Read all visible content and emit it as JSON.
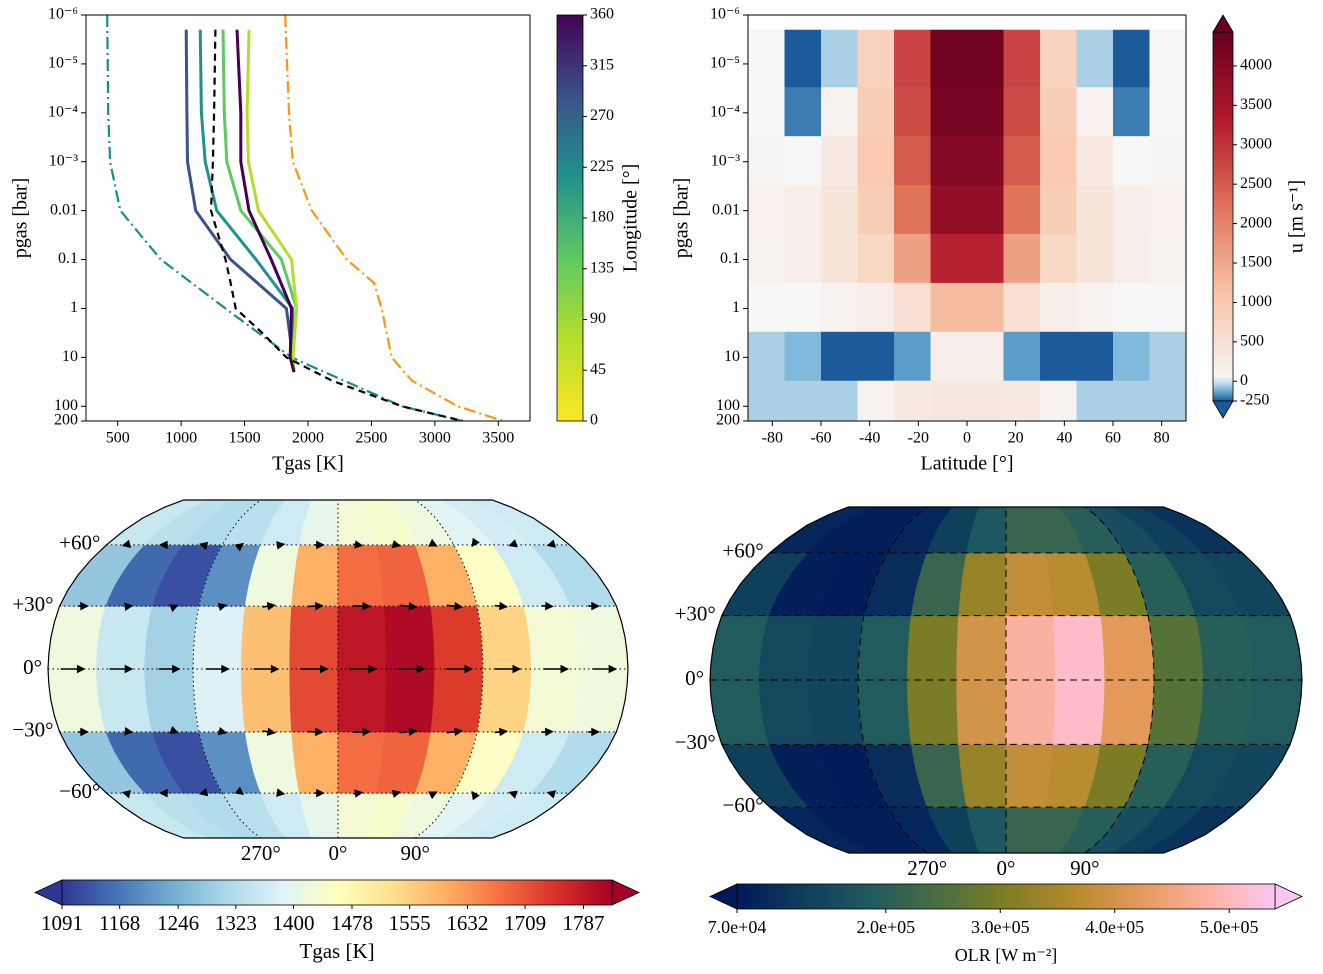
{
  "chart_data": [
    {
      "type": "line",
      "xlabel": "Tgas [K]",
      "ylabel": "pgas [bar]",
      "xlim": [
        250,
        3750
      ],
      "xticks": [
        500,
        1000,
        1500,
        2000,
        2500,
        3000,
        3500
      ],
      "ylim": [
        1e-06,
        200
      ],
      "ylog": true,
      "yinverted": true,
      "yticks": [
        {
          "value": 1e-06,
          "label": "10⁻⁶"
        },
        {
          "value": 1e-05,
          "label": "10⁻⁵"
        },
        {
          "value": 0.0001,
          "label": "10⁻⁴"
        },
        {
          "value": 0.001,
          "label": "10⁻³"
        },
        0.01,
        0.1,
        1,
        10,
        100,
        200
      ],
      "series": [
        {
          "color": "#148f8a",
          "linestyle": "dashdot",
          "y": [
            1e-06,
            0.0001,
            0.001,
            0.01,
            0.1,
            1,
            10,
            100,
            200
          ],
          "x": [
            417,
            425,
            440,
            520,
            840,
            1350,
            1870,
            2740,
            3220
          ]
        },
        {
          "color": "#ff9410",
          "linestyle": "dashdot",
          "y": [
            1e-06,
            0.0001,
            0.001,
            0.01,
            0.1,
            0.3,
            1,
            10,
            30,
            100,
            200
          ],
          "x": [
            1820,
            1850,
            1880,
            2030,
            2305,
            2520,
            2580,
            2660,
            2820,
            3180,
            3540
          ]
        },
        {
          "color": "#3b528b",
          "linestyle": "solid",
          "y": [
            2e-06,
            0.0001,
            0.001,
            0.01,
            0.1,
            1,
            10,
            20
          ],
          "x": [
            1040,
            1045,
            1050,
            1115,
            1390,
            1830,
            1880,
            1890
          ]
        },
        {
          "color": "#21918c",
          "linestyle": "solid",
          "y": [
            2e-06,
            0.0001,
            0.001,
            0.01,
            0.1,
            1,
            10,
            20
          ],
          "x": [
            1150,
            1160,
            1190,
            1280,
            1590,
            1880,
            1880,
            1890
          ]
        },
        {
          "color": "#5ec962",
          "linestyle": "solid",
          "y": [
            2e-06,
            0.0001,
            0.001,
            0.01,
            0.1,
            1,
            10,
            20
          ],
          "x": [
            1330,
            1340,
            1360,
            1470,
            1790,
            1910,
            1880,
            1890
          ]
        },
        {
          "color": "#b5de2b",
          "linestyle": "solid",
          "y": [
            2e-06,
            0.0001,
            0.001,
            0.01,
            0.1,
            1,
            10,
            20
          ],
          "x": [
            1535,
            1520,
            1530,
            1610,
            1870,
            1910,
            1880,
            1890
          ]
        },
        {
          "color": "#440154",
          "linestyle": "solid",
          "y": [
            2e-06,
            0.0001,
            0.001,
            0.01,
            0.1,
            1,
            10,
            20
          ],
          "x": [
            1440,
            1470,
            1470,
            1535,
            1710,
            1870,
            1860,
            1890
          ]
        },
        {
          "color": "#000000",
          "linestyle": "dashed",
          "y": [
            2e-06,
            0.0001,
            0.001,
            0.01,
            0.1,
            0.3,
            1,
            3,
            10,
            30,
            100,
            200
          ],
          "x": [
            1270,
            1260,
            1250,
            1235,
            1350,
            1390,
            1430,
            1630,
            1830,
            2190,
            2740,
            3220
          ]
        }
      ],
      "colorbar": {
        "label": "Longitude [°]",
        "lim": [
          0,
          360
        ],
        "ticks": [
          0,
          45,
          90,
          135,
          180,
          225,
          270,
          315,
          360
        ],
        "colors": [
          "#fde725",
          "#b5de2b",
          "#5ec962",
          "#21918c",
          "#3b528b",
          "#440154"
        ]
      }
    },
    {
      "type": "heatmap",
      "xlabel": "Latitude [°]",
      "ylabel": "pgas [bar]",
      "xlim": [
        -90,
        90
      ],
      "xticks": [
        -80,
        -60,
        -40,
        -20,
        0,
        20,
        40,
        60,
        80
      ],
      "ylim": [
        1e-06,
        200
      ],
      "ylog": true,
      "yinverted": true,
      "yticks": [
        {
          "value": 1e-06,
          "label": "10⁻⁶"
        },
        {
          "value": 1e-05,
          "label": "10⁻⁵"
        },
        {
          "value": 0.0001,
          "label": "10⁻⁴"
        },
        {
          "value": 0.001,
          "label": "10⁻³"
        },
        0.01,
        0.1,
        1,
        10,
        100,
        200
      ],
      "xbins": [
        -90,
        -75,
        -60,
        -45,
        -30,
        -15,
        0,
        15,
        30,
        45,
        60,
        75,
        90
      ],
      "ybins": [
        2e-06,
        3e-05,
        0.0003,
        0.003,
        0.03,
        0.3,
        3,
        30,
        200
      ],
      "values": [
        [
          0,
          -250,
          -50,
          800,
          2800,
          4300,
          4300,
          2800,
          800,
          -50,
          -250,
          0
        ],
        [
          0,
          -200,
          100,
          900,
          2700,
          4200,
          4200,
          2700,
          900,
          100,
          -200,
          0
        ],
        [
          50,
          0,
          300,
          1000,
          2500,
          4000,
          4000,
          2500,
          1000,
          300,
          0,
          50
        ],
        [
          150,
          200,
          400,
          900,
          2200,
          3800,
          3800,
          2200,
          900,
          400,
          200,
          150
        ],
        [
          100,
          200,
          400,
          700,
          1600,
          3200,
          3200,
          1600,
          700,
          400,
          200,
          100
        ],
        [
          0,
          0,
          100,
          200,
          500,
          1200,
          1200,
          500,
          200,
          100,
          0,
          0
        ],
        [
          -50,
          -100,
          -280,
          -300,
          -150,
          200,
          200,
          -150,
          -300,
          -280,
          -100,
          -50
        ],
        [
          -50,
          -50,
          -50,
          100,
          300,
          350,
          350,
          300,
          100,
          -50,
          -50,
          -50
        ]
      ],
      "colorbar": {
        "label": "u [m s⁻¹]",
        "lim": [
          -250,
          4430
        ],
        "extend": "both",
        "ticks": [
          -250,
          0,
          500,
          1000,
          1500,
          2000,
          2500,
          3000,
          3500,
          4000
        ],
        "negative_colors": [
          "#1b5a9b",
          "#6aaed6",
          "#d5e6f1"
        ],
        "positive_colors": [
          "#f7f7f7",
          "#f9c4a8",
          "#e0735a",
          "#b2182b",
          "#67001f"
        ]
      }
    },
    {
      "type": "map",
      "grid_style": "dotted",
      "lonbins": [
        -180,
        -150,
        -120,
        -90,
        -60,
        -30,
        0,
        30,
        60,
        90,
        120,
        150,
        180
      ],
      "latbins": [
        -90,
        -60,
        -30,
        0,
        30,
        60,
        90
      ],
      "values": [
        [
          1350,
          1330,
          1320,
          1330,
          1360,
          1400,
          1430,
          1440,
          1420,
          1390,
          1370,
          1360
        ],
        [
          1280,
          1150,
          1120,
          1200,
          1420,
          1600,
          1680,
          1690,
          1600,
          1450,
          1360,
          1320
        ],
        [
          1420,
          1350,
          1300,
          1380,
          1580,
          1720,
          1790,
          1810,
          1740,
          1550,
          1430,
          1420
        ],
        [
          1420,
          1350,
          1300,
          1380,
          1580,
          1720,
          1790,
          1810,
          1740,
          1550,
          1430,
          1420
        ],
        [
          1280,
          1150,
          1120,
          1200,
          1420,
          1600,
          1680,
          1690,
          1600,
          1450,
          1360,
          1320
        ],
        [
          1350,
          1330,
          1320,
          1330,
          1360,
          1400,
          1430,
          1440,
          1420,
          1390,
          1370,
          1360
        ]
      ],
      "latticks": [
        {
          "value": 60,
          "label": "+60°"
        },
        {
          "value": 30,
          "label": "+30°"
        },
        {
          "value": 0,
          "label": "0°"
        },
        {
          "value": -30,
          "label": "−30°"
        },
        {
          "value": -60,
          "label": "−60°"
        }
      ],
      "lonticks": [
        {
          "value": -90,
          "label": "270°"
        },
        {
          "value": 0,
          "label": "0°"
        },
        {
          "value": 90,
          "label": "90°"
        }
      ],
      "quiver": {
        "lat": [
          -60,
          -30,
          0,
          30,
          60
        ],
        "lon": [
          -165,
          -135,
          -105,
          -75,
          -45,
          -15,
          15,
          45,
          75,
          105,
          135,
          165
        ],
        "u": [
          [
            -800,
            -1200,
            -800,
            400,
            1200,
            1500,
            1500,
            1200,
            600,
            -200,
            -600,
            -700
          ],
          [
            1500,
            800,
            500,
            1200,
            2000,
            2500,
            2800,
            2800,
            2500,
            2000,
            1800,
            1700
          ],
          [
            4000,
            3800,
            3500,
            3800,
            4200,
            4500,
            4500,
            4500,
            4300,
            4200,
            4100,
            4000
          ],
          [
            1500,
            800,
            500,
            1200,
            2000,
            2500,
            2800,
            2800,
            2500,
            2000,
            1800,
            1700
          ],
          [
            -800,
            -1200,
            -800,
            400,
            1200,
            1500,
            1500,
            1200,
            600,
            -200,
            -600,
            -700
          ]
        ],
        "v": [
          [
            200,
            0,
            -200,
            -300,
            -200,
            0,
            200,
            300,
            300,
            300,
            200,
            200
          ],
          [
            0,
            -100,
            -200,
            -300,
            -300,
            -100,
            100,
            300,
            300,
            200,
            100,
            0
          ],
          [
            0,
            0,
            0,
            0,
            0,
            0,
            0,
            0,
            0,
            0,
            0,
            0
          ],
          [
            0,
            100,
            200,
            300,
            300,
            100,
            -100,
            -300,
            -300,
            -200,
            -100,
            0
          ],
          [
            -200,
            0,
            200,
            300,
            200,
            0,
            -200,
            -300,
            -300,
            -300,
            -200,
            -200
          ]
        ]
      },
      "colorbar": {
        "label": "Tgas [K]",
        "lim": [
          1091,
          1825
        ],
        "extend": "both",
        "ticks": [
          1091,
          1168,
          1246,
          1323,
          1400,
          1478,
          1555,
          1632,
          1709,
          1787
        ],
        "colors": [
          "#313695",
          "#4575b4",
          "#74add1",
          "#abd9e9",
          "#e0f3f8",
          "#ffffbf",
          "#fee090",
          "#fdae61",
          "#f46d43",
          "#d73027",
          "#a50026"
        ]
      }
    },
    {
      "type": "map",
      "grid_style": "dashed",
      "lonbins": [
        -180,
        -150,
        -120,
        -90,
        -60,
        -30,
        0,
        30,
        60,
        90,
        120,
        150,
        180
      ],
      "latbins": [
        -90,
        -60,
        -30,
        0,
        30,
        60,
        90
      ],
      "values": [
        [
          90000,
          80000,
          80000,
          90000,
          130000,
          180000,
          220000,
          220000,
          200000,
          160000,
          130000,
          110000
        ],
        [
          130000,
          80000,
          75000,
          100000,
          220000,
          330000,
          380000,
          370000,
          300000,
          200000,
          150000,
          140000
        ],
        [
          190000,
          150000,
          140000,
          190000,
          300000,
          400000,
          480000,
          510000,
          420000,
          260000,
          200000,
          190000
        ],
        [
          190000,
          150000,
          140000,
          190000,
          300000,
          400000,
          480000,
          510000,
          420000,
          260000,
          200000,
          190000
        ],
        [
          130000,
          80000,
          75000,
          100000,
          220000,
          330000,
          380000,
          370000,
          300000,
          200000,
          150000,
          140000
        ],
        [
          90000,
          80000,
          80000,
          90000,
          130000,
          180000,
          220000,
          220000,
          200000,
          160000,
          130000,
          110000
        ]
      ],
      "latticks": [
        {
          "value": 60,
          "label": "+60°"
        },
        {
          "value": 30,
          "label": "+30°"
        },
        {
          "value": 0,
          "label": "0°"
        },
        {
          "value": -30,
          "label": "−30°"
        },
        {
          "value": -60,
          "label": "−60°"
        }
      ],
      "lonticks": [
        {
          "value": -90,
          "label": "270°"
        },
        {
          "value": 0,
          "label": "0°"
        },
        {
          "value": 90,
          "label": "90°"
        }
      ],
      "colorbar": {
        "label": "OLR [W m⁻²]",
        "lim": [
          70000,
          540000
        ],
        "extend": "both",
        "ticks": [
          {
            "value": 70000,
            "label": "7.0e+04"
          },
          {
            "value": 200000,
            "label": "2.0e+05"
          },
          {
            "value": 300000,
            "label": "3.0e+05"
          },
          {
            "value": 400000,
            "label": "4.0e+05"
          },
          {
            "value": 500000,
            "label": "5.0e+05"
          }
        ],
        "colors": [
          "#011959",
          "#0e3f5c",
          "#1f5a5f",
          "#4a6e3f",
          "#7f7d24",
          "#b58a2d",
          "#e49a5b",
          "#fdb1a2",
          "#fbc7f0"
        ]
      }
    }
  ]
}
